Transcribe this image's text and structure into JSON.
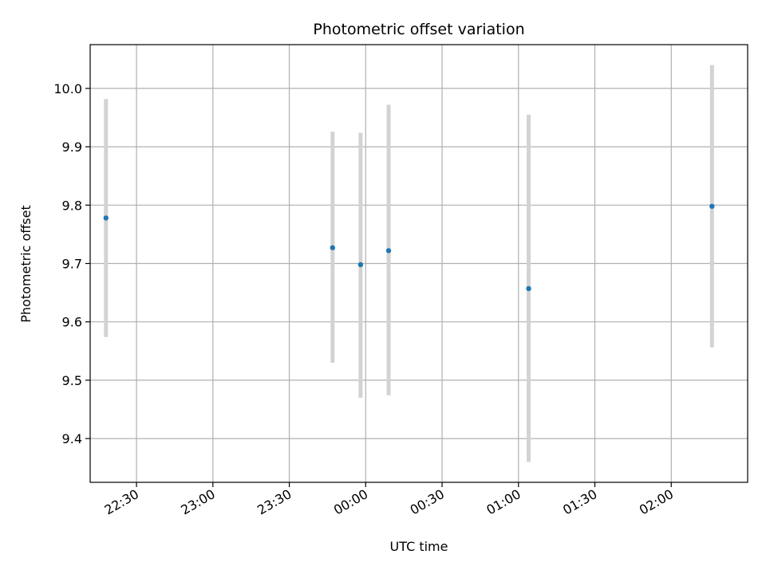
{
  "chart_data": {
    "type": "scatter",
    "title": "Photometric offset variation",
    "xlabel": "UTC time",
    "ylabel": "Photometric offset",
    "xlim": [
      "22:18",
      "02:30"
    ],
    "ylim": [
      9.325,
      10.075
    ],
    "x_ticks": [
      "22:30",
      "23:00",
      "23:30",
      "00:00",
      "00:30",
      "01:00",
      "01:30",
      "02:00"
    ],
    "y_ticks": [
      9.4,
      9.5,
      9.6,
      9.7,
      9.8,
      9.9,
      10.0
    ],
    "y_tick_labels": [
      "9.4",
      "9.5",
      "9.6",
      "9.7",
      "9.8",
      "9.9",
      "10.0"
    ],
    "grid": true,
    "points": [
      {
        "x": "22:18",
        "y": 9.778,
        "ylow": 9.574,
        "yhigh": 9.982
      },
      {
        "x": "23:47",
        "y": 9.727,
        "ylow": 9.53,
        "yhigh": 9.926
      },
      {
        "x": "23:58",
        "y": 9.698,
        "ylow": 9.47,
        "yhigh": 9.924
      },
      {
        "x": "00:09",
        "y": 9.722,
        "ylow": 9.474,
        "yhigh": 9.972
      },
      {
        "x": "01:04",
        "y": 9.657,
        "ylow": 9.36,
        "yhigh": 9.955
      },
      {
        "x": "02:16",
        "y": 9.798,
        "ylow": 9.556,
        "yhigh": 10.04
      }
    ],
    "colors": {
      "marker": "#1f77b4",
      "errorbar": "#d3d3d3",
      "grid": "#b0b0b0"
    }
  }
}
